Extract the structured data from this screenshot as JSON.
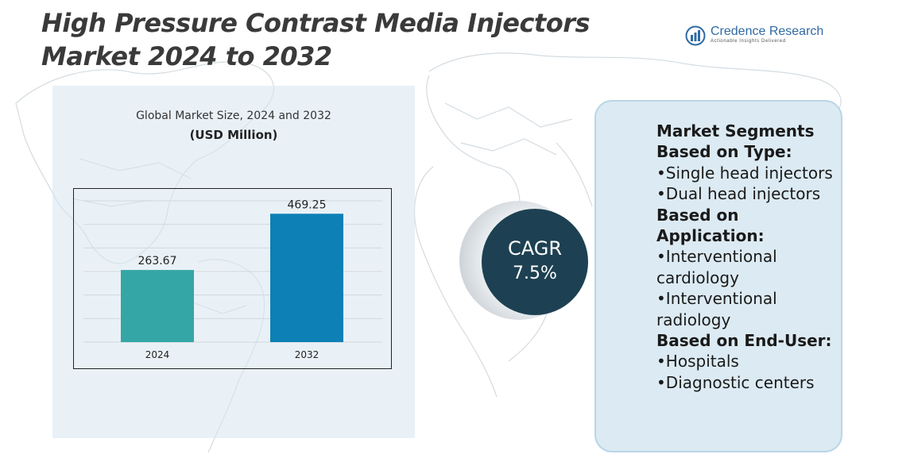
{
  "title": "High Pressure Contrast Media Injectors Market 2024 to 2032",
  "logo": {
    "name": "Credence Research",
    "tagline": "Actionable Insights Delivered"
  },
  "chart_data": {
    "type": "bar",
    "title": "Global Market Size, 2024 and 2032",
    "subtitle": "(USD Million)",
    "categories": [
      "2024",
      "2032"
    ],
    "values": [
      263.67,
      469.25
    ],
    "value_labels": [
      "263.67",
      "469.25"
    ],
    "colors": [
      "#35a6a6",
      "#0d80b5"
    ],
    "ylim": [
      0,
      560
    ],
    "grid": true
  },
  "cagr": {
    "label": "CAGR",
    "value": "7.5%"
  },
  "segments": {
    "heading": "Market Segments",
    "type_heading": "Based on Type:",
    "type_items": [
      "•Single head injectors",
      "•Dual head injectors"
    ],
    "application_heading": "Based on Application:",
    "application_items": [
      "•Interventional cardiology",
      "•Interventional radiology"
    ],
    "enduser_heading": "Based on End-User:",
    "enduser_items": [
      "•Hospitals",
      "•Diagnostic centers"
    ]
  },
  "colors": {
    "title": "#3a3a3a",
    "cagr_circle": "#1d4152",
    "panel": "#dceaf3",
    "accent": "#2f6aa3"
  }
}
